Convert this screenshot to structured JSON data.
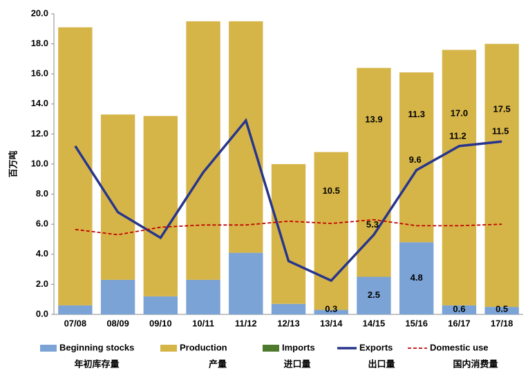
{
  "chart_data": {
    "type": "bar",
    "stacked": true,
    "y_label": "百万吨",
    "categories": [
      "07/08",
      "08/09",
      "09/10",
      "10/11",
      "11/12",
      "12/13",
      "13/14",
      "14/15",
      "15/16",
      "16/17",
      "17/18"
    ],
    "ylim": [
      0,
      20
    ],
    "yticks": [
      {
        "value": 0,
        "label": "0.0"
      },
      {
        "value": 2,
        "label": "2.0"
      },
      {
        "value": 4,
        "label": "4.0"
      },
      {
        "value": 6,
        "label": "6.0"
      },
      {
        "value": 8,
        "label": "8.0"
      },
      {
        "value": 10,
        "label": "10.0"
      },
      {
        "value": 12,
        "label": "12.0"
      },
      {
        "value": 14,
        "label": "14.0"
      },
      {
        "value": 16,
        "label": "16.0"
      },
      {
        "value": 18,
        "label": "18.0"
      },
      {
        "value": 20,
        "label": "20.0"
      }
    ],
    "series": [
      {
        "name": "Beginning stocks",
        "name_cn": "年初库存量",
        "kind": "bar",
        "color": "#7ba3d6",
        "values": [
          0.6,
          2.3,
          1.2,
          2.3,
          4.1,
          0.7,
          0.3,
          2.5,
          4.8,
          0.6,
          0.5
        ],
        "value_labels": [
          null,
          null,
          null,
          null,
          null,
          null,
          "0.3",
          "2.5",
          "4.8",
          "0.6",
          "0.5"
        ]
      },
      {
        "name": "Production",
        "name_cn": "产量",
        "kind": "bar",
        "color": "#d6b548",
        "values": [
          18.5,
          11.0,
          12.0,
          17.2,
          15.4,
          9.3,
          10.5,
          13.9,
          11.3,
          17.0,
          17.5
        ],
        "value_labels": [
          null,
          null,
          null,
          null,
          null,
          null,
          "10.5",
          "13.9",
          "11.3",
          "17.0",
          "17.5"
        ]
      },
      {
        "name": "Imports",
        "name_cn": "进口量",
        "kind": "bar",
        "color": "#4e7a2e",
        "values": [
          0,
          0,
          0,
          0,
          0,
          0,
          0,
          0,
          0,
          0,
          0
        ]
      },
      {
        "name": "Exports",
        "name_cn": "出口量",
        "kind": "line",
        "color": "#27358c",
        "values": [
          11.2,
          6.8,
          5.1,
          9.45,
          12.9,
          3.55,
          2.25,
          5.3,
          9.6,
          11.2,
          11.5
        ],
        "value_labels": [
          null,
          null,
          null,
          null,
          null,
          null,
          null,
          "5.3",
          "9.6",
          "11.2",
          "11.5"
        ]
      },
      {
        "name": "Domestic use",
        "name_cn": "国内消费量",
        "kind": "dashed",
        "color": "#c00000",
        "values": [
          5.65,
          5.3,
          5.8,
          5.95,
          5.95,
          6.2,
          6.05,
          6.3,
          5.9,
          5.9,
          6.0
        ]
      }
    ]
  }
}
